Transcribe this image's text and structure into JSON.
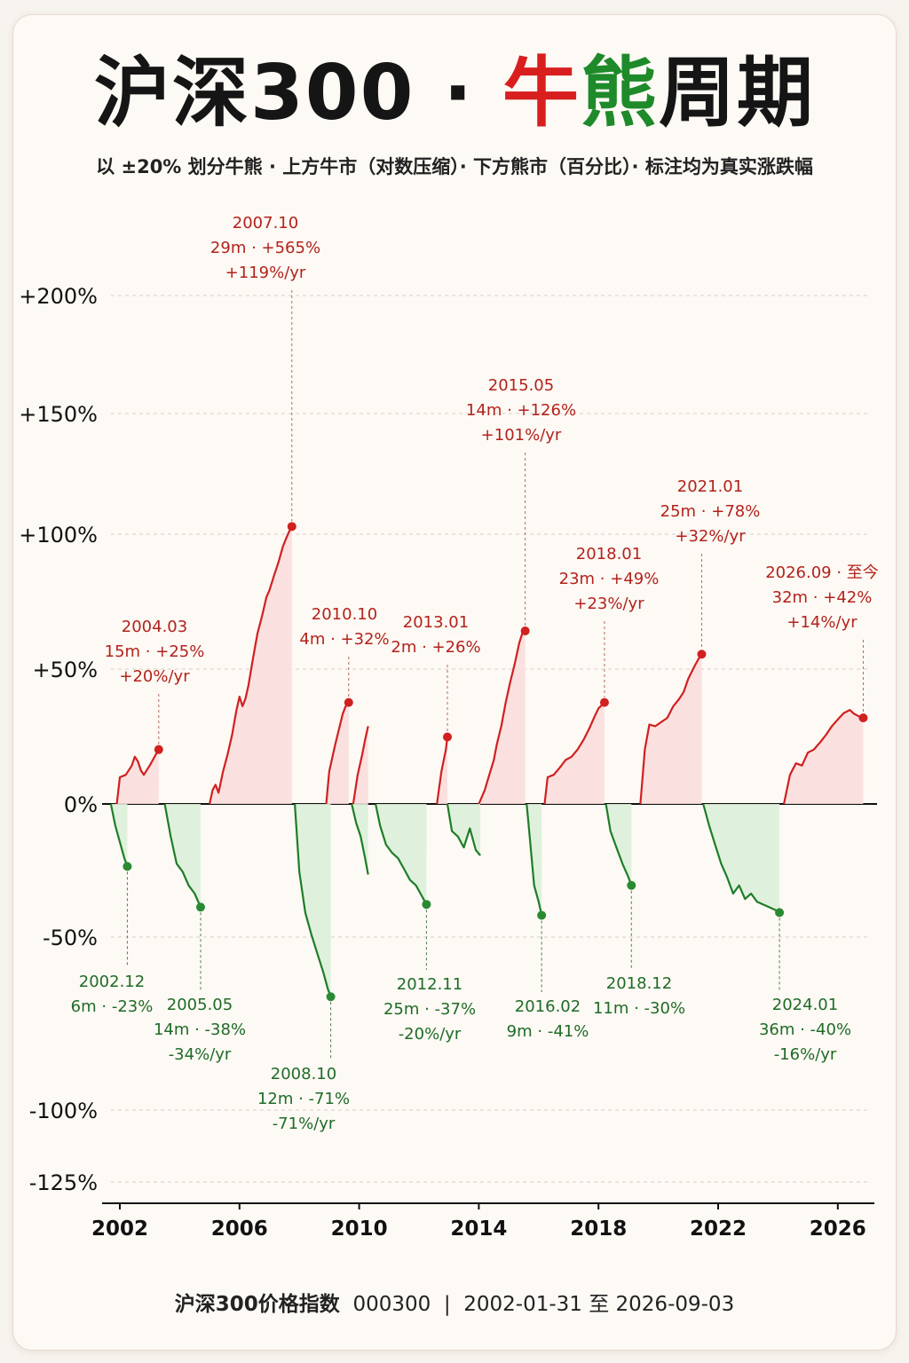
{
  "title": {
    "part1": "沪深300 · ",
    "part_red": "牛",
    "part_green": "熊",
    "part2": "周期"
  },
  "subtitle": "以 ±20% 划分牛熊 · 上方牛市（对数压缩）· 下方熊市（百分比）· 标注均为真实涨跌幅",
  "footer": {
    "name": "沪深300价格指数",
    "code": "000300",
    "sep": "|",
    "range": "2002-01-31  至  2026-09-03"
  },
  "colors": {
    "bull": "#d02020",
    "bull_fill": "#f9dede",
    "bear": "#1e7d28",
    "bear_fill": "#dcefd9",
    "background": "#fdf9f4"
  },
  "chart_data": {
    "type": "area",
    "title": "",
    "xlabel": "",
    "ylabel": "",
    "x_ticks": [
      "2002",
      "2006",
      "2010",
      "2014",
      "2018",
      "2022",
      "2026"
    ],
    "y_ticks": [
      "+200%",
      "+150%",
      "+100%",
      "+50%",
      "0%",
      "-50%",
      "-100%",
      "-125%"
    ],
    "xlim": [
      2001.6,
      2027.2
    ],
    "grid": true,
    "series": [
      {
        "kind": "bull",
        "points": [
          [
            2001.9,
            0
          ],
          [
            2002.0,
            0.2
          ],
          [
            2002.2,
            0.22
          ],
          [
            2002.4,
            0.3
          ],
          [
            2002.5,
            0.38
          ],
          [
            2002.6,
            0.34
          ],
          [
            2002.7,
            0.26
          ],
          [
            2002.8,
            0.22
          ],
          [
            2002.9,
            0.26
          ],
          [
            2003.0,
            0.3
          ],
          [
            2003.1,
            0.35
          ],
          [
            2003.2,
            0.4
          ],
          [
            2003.3,
            0.45
          ]
        ]
      },
      {
        "kind": "bull",
        "points": [
          [
            2005.0,
            0
          ],
          [
            2005.1,
            0.1
          ],
          [
            2005.2,
            0.14
          ],
          [
            2005.3,
            0.08
          ],
          [
            2005.45,
            0.25
          ],
          [
            2005.6,
            0.4
          ],
          [
            2005.75,
            0.6
          ],
          [
            2005.9,
            0.9
          ],
          [
            2006.0,
            1.08
          ],
          [
            2006.1,
            0.95
          ],
          [
            2006.2,
            1.05
          ],
          [
            2006.3,
            1.25
          ],
          [
            2006.45,
            1.7
          ],
          [
            2006.6,
            2.2
          ],
          [
            2006.75,
            2.6
          ],
          [
            2006.9,
            3.1
          ],
          [
            2007.0,
            3.3
          ],
          [
            2007.15,
            3.75
          ],
          [
            2007.3,
            4.2
          ],
          [
            2007.45,
            4.8
          ],
          [
            2007.55,
            5.1
          ],
          [
            2007.65,
            5.4
          ],
          [
            2007.75,
            5.65
          ]
        ]
      },
      {
        "kind": "bull",
        "points": [
          [
            2008.9,
            0
          ],
          [
            2009.0,
            0.25
          ],
          [
            2009.2,
            0.5
          ],
          [
            2009.35,
            0.7
          ],
          [
            2009.45,
            0.85
          ],
          [
            2009.55,
            0.95
          ],
          [
            2009.65,
            1.0
          ]
        ]
      },
      {
        "kind": "bull",
        "points": [
          [
            2009.8,
            0
          ],
          [
            2009.95,
            0.22
          ],
          [
            2010.1,
            0.4
          ],
          [
            2010.2,
            0.55
          ],
          [
            2010.3,
            0.7
          ]
        ]
      },
      {
        "kind": "bull",
        "points": [
          [
            2012.6,
            0
          ],
          [
            2012.75,
            0.25
          ],
          [
            2012.9,
            0.45
          ],
          [
            2012.95,
            0.58
          ]
        ]
      },
      {
        "kind": "bull",
        "points": [
          [
            2014.0,
            0
          ],
          [
            2014.2,
            0.1
          ],
          [
            2014.35,
            0.22
          ],
          [
            2014.5,
            0.35
          ],
          [
            2014.6,
            0.5
          ],
          [
            2014.75,
            0.7
          ],
          [
            2014.9,
            1.0
          ],
          [
            2015.05,
            1.3
          ],
          [
            2015.2,
            1.6
          ],
          [
            2015.35,
            2.0
          ],
          [
            2015.45,
            2.2
          ],
          [
            2015.55,
            2.26
          ]
        ]
      },
      {
        "kind": "bull",
        "points": [
          [
            2016.2,
            0
          ],
          [
            2016.3,
            0.2
          ],
          [
            2016.5,
            0.22
          ],
          [
            2016.7,
            0.28
          ],
          [
            2016.9,
            0.35
          ],
          [
            2017.1,
            0.38
          ],
          [
            2017.3,
            0.45
          ],
          [
            2017.5,
            0.55
          ],
          [
            2017.7,
            0.68
          ],
          [
            2017.85,
            0.8
          ],
          [
            2018.0,
            0.92
          ],
          [
            2018.15,
            0.98
          ],
          [
            2018.2,
            1.0
          ]
        ]
      },
      {
        "kind": "bull",
        "points": [
          [
            2019.4,
            0
          ],
          [
            2019.55,
            0.45
          ],
          [
            2019.7,
            0.72
          ],
          [
            2019.9,
            0.7
          ],
          [
            2020.1,
            0.75
          ],
          [
            2020.3,
            0.8
          ],
          [
            2020.5,
            0.95
          ],
          [
            2020.7,
            1.05
          ],
          [
            2020.85,
            1.15
          ],
          [
            2021.0,
            1.35
          ],
          [
            2021.2,
            1.55
          ],
          [
            2021.35,
            1.7
          ],
          [
            2021.45,
            1.78
          ]
        ]
      },
      {
        "kind": "bull",
        "points": [
          [
            2024.2,
            0
          ],
          [
            2024.4,
            0.22
          ],
          [
            2024.6,
            0.32
          ],
          [
            2024.8,
            0.3
          ],
          [
            2025.0,
            0.42
          ],
          [
            2025.2,
            0.45
          ],
          [
            2025.4,
            0.52
          ],
          [
            2025.6,
            0.6
          ],
          [
            2025.8,
            0.7
          ],
          [
            2026.0,
            0.78
          ],
          [
            2026.2,
            0.86
          ],
          [
            2026.4,
            0.9
          ],
          [
            2026.55,
            0.85
          ],
          [
            2026.7,
            0.82
          ],
          [
            2026.85,
            0.8
          ]
        ]
      },
      {
        "kind": "bear",
        "points": [
          [
            2001.7,
            0
          ],
          [
            2001.85,
            -0.08
          ],
          [
            2002.0,
            -0.14
          ],
          [
            2002.15,
            -0.2
          ],
          [
            2002.25,
            -0.23
          ]
        ]
      },
      {
        "kind": "bear",
        "points": [
          [
            2003.5,
            0
          ],
          [
            2003.7,
            -0.12
          ],
          [
            2003.9,
            -0.22
          ],
          [
            2004.1,
            -0.25
          ],
          [
            2004.3,
            -0.3
          ],
          [
            2004.5,
            -0.33
          ],
          [
            2004.7,
            -0.38
          ]
        ]
      },
      {
        "kind": "bear",
        "points": [
          [
            2007.85,
            0
          ],
          [
            2008.0,
            -0.25
          ],
          [
            2008.2,
            -0.4
          ],
          [
            2008.4,
            -0.48
          ],
          [
            2008.6,
            -0.55
          ],
          [
            2008.8,
            -0.62
          ],
          [
            2008.95,
            -0.68
          ],
          [
            2009.05,
            -0.71
          ]
        ]
      },
      {
        "kind": "bear",
        "points": [
          [
            2009.75,
            0
          ],
          [
            2009.9,
            -0.07
          ],
          [
            2010.05,
            -0.12
          ],
          [
            2010.2,
            -0.2
          ],
          [
            2010.3,
            -0.26
          ]
        ]
      },
      {
        "kind": "bear",
        "points": [
          [
            2010.55,
            0
          ],
          [
            2010.7,
            -0.08
          ],
          [
            2010.9,
            -0.15
          ],
          [
            2011.1,
            -0.18
          ],
          [
            2011.3,
            -0.2
          ],
          [
            2011.5,
            -0.24
          ],
          [
            2011.7,
            -0.28
          ],
          [
            2011.9,
            -0.3
          ],
          [
            2012.05,
            -0.33
          ],
          [
            2012.25,
            -0.37
          ]
        ]
      },
      {
        "kind": "bear",
        "points": [
          [
            2012.95,
            0
          ],
          [
            2013.1,
            -0.1
          ],
          [
            2013.3,
            -0.12
          ],
          [
            2013.5,
            -0.16
          ],
          [
            2013.7,
            -0.09
          ],
          [
            2013.9,
            -0.17
          ],
          [
            2014.05,
            -0.19
          ]
        ]
      },
      {
        "kind": "bear",
        "points": [
          [
            2015.6,
            0
          ],
          [
            2015.7,
            -0.12
          ],
          [
            2015.85,
            -0.3
          ],
          [
            2016.0,
            -0.36
          ],
          [
            2016.1,
            -0.41
          ]
        ]
      },
      {
        "kind": "bear",
        "points": [
          [
            2018.25,
            0
          ],
          [
            2018.4,
            -0.1
          ],
          [
            2018.6,
            -0.16
          ],
          [
            2018.8,
            -0.22
          ],
          [
            2019.0,
            -0.27
          ],
          [
            2019.1,
            -0.3
          ]
        ]
      },
      {
        "kind": "bear",
        "points": [
          [
            2021.5,
            0
          ],
          [
            2021.7,
            -0.08
          ],
          [
            2021.9,
            -0.15
          ],
          [
            2022.1,
            -0.22
          ],
          [
            2022.3,
            -0.27
          ],
          [
            2022.5,
            -0.33
          ],
          [
            2022.7,
            -0.3
          ],
          [
            2022.9,
            -0.35
          ],
          [
            2023.1,
            -0.33
          ],
          [
            2023.3,
            -0.36
          ],
          [
            2023.5,
            -0.37
          ],
          [
            2023.7,
            -0.38
          ],
          [
            2023.9,
            -0.39
          ],
          [
            2024.05,
            -0.4
          ]
        ]
      }
    ],
    "bull_annotations": [
      {
        "date": "2004.03",
        "detail": "15m · +25%",
        "annual": "+20%/yr",
        "x": 2003.3,
        "y": 0.45
      },
      {
        "date": "2007.10",
        "detail": "29m · +565%",
        "annual": "+119%/yr",
        "x": 2007.75,
        "y": 5.65
      },
      {
        "date": "2010.10",
        "detail": "4m · +32%",
        "annual": "",
        "x": 2009.65,
        "y": 1.0
      },
      {
        "date": "2013.01",
        "detail": "2m · +26%",
        "annual": "",
        "x": 2012.95,
        "y": 0.58
      },
      {
        "date": "2015.05",
        "detail": "14m · +126%",
        "annual": "+101%/yr",
        "x": 2015.55,
        "y": 2.26
      },
      {
        "date": "2018.01",
        "detail": "23m · +49%",
        "annual": "+23%/yr",
        "x": 2018.2,
        "y": 1.0
      },
      {
        "date": "2021.01",
        "detail": "25m · +78%",
        "annual": "+32%/yr",
        "x": 2021.45,
        "y": 1.78
      },
      {
        "date": "2026.09 · 至今",
        "detail": "32m · +42%",
        "annual": "+14%/yr",
        "x": 2026.85,
        "y": 0.8
      }
    ],
    "bear_annotations": [
      {
        "date": "2002.12",
        "detail": "6m · -23%",
        "annual": "",
        "x": 2002.25,
        "y": -0.23
      },
      {
        "date": "2005.05",
        "detail": "14m · -38%",
        "annual": "-34%/yr",
        "x": 2004.7,
        "y": -0.38
      },
      {
        "date": "2008.10",
        "detail": "12m · -71%",
        "annual": "-71%/yr",
        "x": 2009.05,
        "y": -0.71
      },
      {
        "date": "2012.11",
        "detail": "25m · -37%",
        "annual": "-20%/yr",
        "x": 2012.25,
        "y": -0.37
      },
      {
        "date": "2016.02",
        "detail": "9m · -41%",
        "annual": "",
        "x": 2016.1,
        "y": -0.41
      },
      {
        "date": "2018.12",
        "detail": "11m · -30%",
        "annual": "",
        "x": 2019.1,
        "y": -0.3
      },
      {
        "date": "2024.01",
        "detail": "36m · -40%",
        "annual": "-16%/yr",
        "x": 2024.05,
        "y": -0.4
      }
    ]
  }
}
